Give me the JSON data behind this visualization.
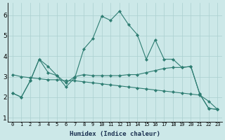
{
  "xlabel": "Humidex (Indice chaleur)",
  "background_color": "#cce8e8",
  "line_color": "#2e7d72",
  "xlim": [
    -0.5,
    23.5
  ],
  "ylim": [
    0.8,
    6.6
  ],
  "yticks": [
    1,
    2,
    3,
    4,
    5,
    6
  ],
  "xticks": [
    0,
    1,
    2,
    3,
    4,
    5,
    6,
    7,
    8,
    9,
    10,
    11,
    12,
    13,
    14,
    15,
    16,
    17,
    18,
    19,
    20,
    21,
    22,
    23
  ],
  "series": [
    {
      "x": [
        0,
        1,
        2,
        3,
        4,
        5,
        6,
        7,
        8,
        9,
        10,
        11,
        12,
        13,
        14,
        15,
        16,
        17,
        18,
        19,
        20,
        21,
        22,
        23
      ],
      "y": [
        2.2,
        2.0,
        2.8,
        3.85,
        3.2,
        3.05,
        2.5,
        2.95,
        4.35,
        4.85,
        5.95,
        5.75,
        6.2,
        5.55,
        5.05,
        3.85,
        4.8,
        3.85,
        3.85,
        3.45,
        3.5,
        2.15,
        1.45,
        1.4
      ]
    },
    {
      "x": [
        0,
        1,
        2,
        3,
        4,
        5,
        6,
        7,
        8,
        9,
        10,
        11,
        12,
        13,
        14,
        15,
        16,
        17,
        18,
        19,
        20,
        21,
        22,
        23
      ],
      "y": [
        2.2,
        2.0,
        2.8,
        3.85,
        3.5,
        3.05,
        2.7,
        3.0,
        3.1,
        3.05,
        3.05,
        3.05,
        3.05,
        3.1,
        3.1,
        3.2,
        3.3,
        3.4,
        3.45,
        3.45,
        3.5,
        2.15,
        1.45,
        1.4
      ]
    },
    {
      "x": [
        0,
        1,
        2,
        3,
        4,
        5,
        6,
        7,
        8,
        9,
        10,
        11,
        12,
        13,
        14,
        15,
        16,
        17,
        18,
        19,
        20,
        21,
        22,
        23
      ],
      "y": [
        3.1,
        3.0,
        2.95,
        2.9,
        2.85,
        2.85,
        2.8,
        2.8,
        2.75,
        2.7,
        2.65,
        2.6,
        2.55,
        2.5,
        2.45,
        2.4,
        2.35,
        2.3,
        2.25,
        2.2,
        2.15,
        2.1,
        1.8,
        1.4
      ]
    }
  ]
}
